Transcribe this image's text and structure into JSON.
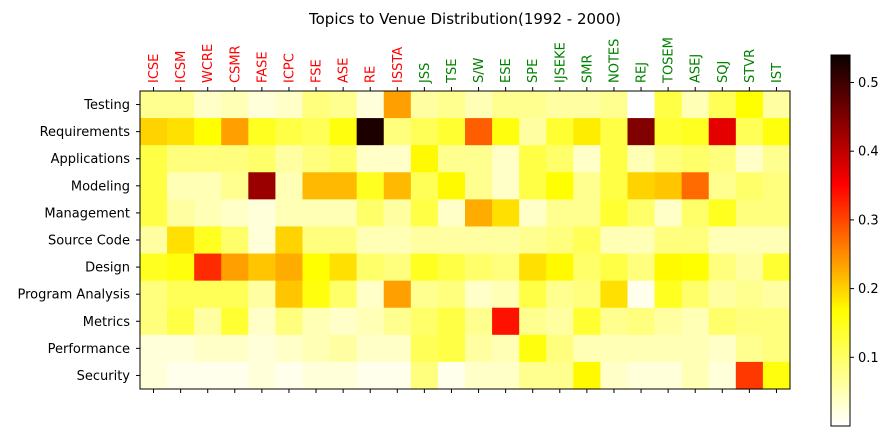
{
  "chart_data": {
    "type": "heatmap",
    "title": "Topics to Venue Distribution(1992 - 2000)",
    "colormap": "hot_r",
    "vmin": 0.0,
    "vmax": 0.54,
    "colorbar_ticks": [
      0.1,
      0.2,
      0.3,
      0.4,
      0.5
    ],
    "colorbar_tick_labels": [
      "0.1",
      "0.2",
      "0.3",
      "0.4",
      "0.5"
    ],
    "x_colors": {
      "conference": "#ff0000",
      "journal": "#008000"
    },
    "x": [
      {
        "label": "ICSE",
        "group": "conference"
      },
      {
        "label": "ICSM",
        "group": "conference"
      },
      {
        "label": "WCRE",
        "group": "conference"
      },
      {
        "label": "CSMR",
        "group": "conference"
      },
      {
        "label": "FASE",
        "group": "conference"
      },
      {
        "label": "ICPC",
        "group": "conference"
      },
      {
        "label": "FSE",
        "group": "conference"
      },
      {
        "label": "ASE",
        "group": "conference"
      },
      {
        "label": "RE",
        "group": "conference"
      },
      {
        "label": "ISSTA",
        "group": "conference"
      },
      {
        "label": "JSS",
        "group": "journal"
      },
      {
        "label": "TSE",
        "group": "journal"
      },
      {
        "label": "S/W",
        "group": "journal"
      },
      {
        "label": "ESE",
        "group": "journal"
      },
      {
        "label": "SPE",
        "group": "journal"
      },
      {
        "label": "IJSEKE",
        "group": "journal"
      },
      {
        "label": "SMR",
        "group": "journal"
      },
      {
        "label": "NOTES",
        "group": "journal"
      },
      {
        "label": "REJ",
        "group": "journal"
      },
      {
        "label": "TOSEM",
        "group": "journal"
      },
      {
        "label": "ASEJ",
        "group": "journal"
      },
      {
        "label": "SQJ",
        "group": "journal"
      },
      {
        "label": "STVR",
        "group": "journal"
      },
      {
        "label": "IST",
        "group": "journal"
      }
    ],
    "y": [
      "Testing",
      "Requirements",
      "Applications",
      "Modeling",
      "Management",
      "Source Code",
      "Design",
      "Program Analysis",
      "Metrics",
      "Performance",
      "Security"
    ],
    "values": [
      [
        0.06,
        0.06,
        0.03,
        0.04,
        0.02,
        0.03,
        0.07,
        0.06,
        0.02,
        0.22,
        0.05,
        0.06,
        0.04,
        0.06,
        0.06,
        0.05,
        0.05,
        0.06,
        0.0,
        0.1,
        0.04,
        0.09,
        0.14,
        0.05
      ],
      [
        0.18,
        0.17,
        0.14,
        0.22,
        0.12,
        0.1,
        0.09,
        0.13,
        0.54,
        0.07,
        0.09,
        0.11,
        0.27,
        0.13,
        0.05,
        0.11,
        0.16,
        0.1,
        0.46,
        0.11,
        0.12,
        0.38,
        0.09,
        0.13
      ],
      [
        0.1,
        0.07,
        0.07,
        0.07,
        0.08,
        0.05,
        0.07,
        0.08,
        0.03,
        0.03,
        0.15,
        0.06,
        0.06,
        0.03,
        0.1,
        0.08,
        0.03,
        0.1,
        0.04,
        0.07,
        0.08,
        0.07,
        0.03,
        0.06
      ],
      [
        0.1,
        0.04,
        0.04,
        0.06,
        0.44,
        0.04,
        0.2,
        0.2,
        0.12,
        0.2,
        0.09,
        0.15,
        0.06,
        0.03,
        0.1,
        0.14,
        0.06,
        0.1,
        0.18,
        0.19,
        0.26,
        0.06,
        0.08,
        0.07
      ],
      [
        0.1,
        0.05,
        0.04,
        0.03,
        0.02,
        0.04,
        0.04,
        0.04,
        0.08,
        0.05,
        0.1,
        0.03,
        0.21,
        0.17,
        0.03,
        0.06,
        0.06,
        0.11,
        0.08,
        0.03,
        0.08,
        0.12,
        0.07,
        0.07
      ],
      [
        0.05,
        0.17,
        0.12,
        0.08,
        0.02,
        0.18,
        0.07,
        0.07,
        0.04,
        0.04,
        0.05,
        0.05,
        0.05,
        0.05,
        0.06,
        0.07,
        0.09,
        0.04,
        0.04,
        0.07,
        0.07,
        0.04,
        0.04,
        0.04
      ],
      [
        0.12,
        0.13,
        0.31,
        0.22,
        0.19,
        0.21,
        0.14,
        0.17,
        0.08,
        0.07,
        0.12,
        0.1,
        0.08,
        0.07,
        0.17,
        0.15,
        0.08,
        0.1,
        0.07,
        0.15,
        0.14,
        0.07,
        0.05,
        0.11
      ],
      [
        0.07,
        0.09,
        0.09,
        0.09,
        0.05,
        0.19,
        0.13,
        0.08,
        0.03,
        0.22,
        0.06,
        0.07,
        0.03,
        0.04,
        0.1,
        0.06,
        0.07,
        0.17,
        0.01,
        0.12,
        0.08,
        0.05,
        0.06,
        0.05
      ],
      [
        0.07,
        0.1,
        0.05,
        0.11,
        0.03,
        0.07,
        0.04,
        0.03,
        0.04,
        0.06,
        0.08,
        0.1,
        0.06,
        0.33,
        0.06,
        0.05,
        0.11,
        0.06,
        0.07,
        0.05,
        0.04,
        0.08,
        0.07,
        0.07
      ],
      [
        0.02,
        0.02,
        0.03,
        0.03,
        0.02,
        0.03,
        0.04,
        0.05,
        0.03,
        0.03,
        0.09,
        0.1,
        0.05,
        0.04,
        0.13,
        0.07,
        0.04,
        0.04,
        0.04,
        0.04,
        0.04,
        0.03,
        0.06,
        0.07
      ],
      [
        0.02,
        0.01,
        0.01,
        0.01,
        0.02,
        0.01,
        0.02,
        0.02,
        0.01,
        0.01,
        0.07,
        0.01,
        0.03,
        0.03,
        0.06,
        0.06,
        0.15,
        0.03,
        0.02,
        0.02,
        0.04,
        0.02,
        0.3,
        0.13
      ]
    ]
  }
}
